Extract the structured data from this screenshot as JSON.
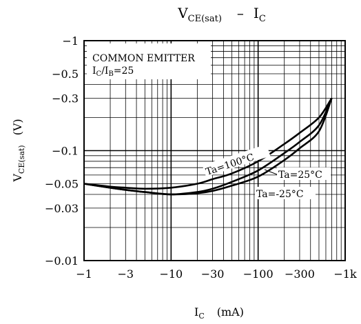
{
  "chart_data": {
    "type": "line",
    "title": {
      "main": "V",
      "sub": "CE(sat)",
      "sep": "–",
      "main2": "I",
      "sub2": "C"
    },
    "ylabel": {
      "main": "V",
      "sub": "CE(sat)",
      "unit": "(V)"
    },
    "xlabel": {
      "main": "I",
      "sub": "C",
      "unit": "(mA)"
    },
    "xscale": "log",
    "yscale": "log",
    "xlim": [
      -1,
      -1000
    ],
    "ylim": [
      -0.01,
      -1
    ],
    "x_ticks": [
      {
        "value": -1,
        "label": "−1"
      },
      {
        "value": -3,
        "label": "−3"
      },
      {
        "value": -10,
        "label": "−10"
      },
      {
        "value": -30,
        "label": "−30"
      },
      {
        "value": -100,
        "label": "−100"
      },
      {
        "value": -300,
        "label": "−300"
      },
      {
        "value": -1000,
        "label": "−1k"
      }
    ],
    "y_ticks": [
      {
        "value": -1,
        "label": "−1"
      },
      {
        "value": -0.5,
        "label": "−0.5"
      },
      {
        "value": -0.3,
        "label": "−0.3"
      },
      {
        "value": -0.1,
        "label": "−0.1"
      },
      {
        "value": -0.05,
        "label": "−0.05"
      },
      {
        "value": -0.03,
        "label": "−0.03"
      },
      {
        "value": -0.01,
        "label": "−0.01"
      }
    ],
    "grid": true,
    "annotation": {
      "line1": "COMMON EMITTER",
      "line2_main": "I",
      "line2_sub": "C",
      "line2_slash": "/I",
      "line2_sub2": "B",
      "line2_tail": "=25"
    },
    "series": [
      {
        "name": "Ta=100°C",
        "x": [
          -1,
          -2,
          -3,
          -5,
          -10,
          -20,
          -30,
          -50,
          -100,
          -200,
          -300,
          -500,
          -700
        ],
        "y": [
          -0.05,
          -0.047,
          -0.046,
          -0.045,
          -0.046,
          -0.05,
          -0.055,
          -0.062,
          -0.08,
          -0.115,
          -0.145,
          -0.2,
          -0.3
        ]
      },
      {
        "name": "Ta=25°C",
        "x": [
          -1,
          -2,
          -3,
          -5,
          -10,
          -20,
          -30,
          -50,
          -100,
          -200,
          -300,
          -500,
          -700
        ],
        "y": [
          -0.05,
          -0.046,
          -0.044,
          -0.042,
          -0.04,
          -0.042,
          -0.045,
          -0.052,
          -0.066,
          -0.095,
          -0.12,
          -0.17,
          -0.3
        ]
      },
      {
        "name": "Ta=-25°C",
        "x": [
          -1,
          -2,
          -3,
          -5,
          -10,
          -20,
          -30,
          -50,
          -100,
          -200,
          -300,
          -500,
          -700
        ],
        "y": [
          -0.05,
          -0.046,
          -0.044,
          -0.042,
          -0.04,
          -0.041,
          -0.043,
          -0.048,
          -0.058,
          -0.082,
          -0.105,
          -0.15,
          -0.3
        ]
      }
    ]
  }
}
